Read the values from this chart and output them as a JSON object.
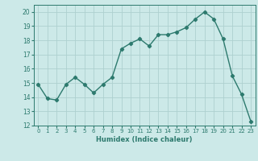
{
  "x": [
    0,
    1,
    2,
    3,
    4,
    5,
    6,
    7,
    8,
    9,
    10,
    11,
    12,
    13,
    14,
    15,
    16,
    17,
    18,
    19,
    20,
    21,
    22,
    23
  ],
  "y": [
    14.9,
    13.9,
    13.8,
    14.9,
    15.4,
    14.9,
    14.3,
    14.9,
    15.4,
    17.4,
    17.8,
    18.1,
    17.6,
    18.4,
    18.4,
    18.6,
    18.9,
    19.5,
    20.0,
    19.5,
    18.1,
    15.5,
    14.2,
    12.3
  ],
  "line_color": "#2d7a6e",
  "marker": "D",
  "marker_size": 2.2,
  "bg_color": "#cce9e8",
  "grid_color": "#aed0cf",
  "tick_color": "#2d7a6e",
  "label_color": "#2d7a6e",
  "xlabel": "Humidex (Indice chaleur)",
  "ylim": [
    12,
    20.5
  ],
  "xlim": [
    -0.5,
    23.5
  ],
  "yticks": [
    12,
    13,
    14,
    15,
    16,
    17,
    18,
    19,
    20
  ],
  "xticks": [
    0,
    1,
    2,
    3,
    4,
    5,
    6,
    7,
    8,
    9,
    10,
    11,
    12,
    13,
    14,
    15,
    16,
    17,
    18,
    19,
    20,
    21,
    22,
    23
  ]
}
